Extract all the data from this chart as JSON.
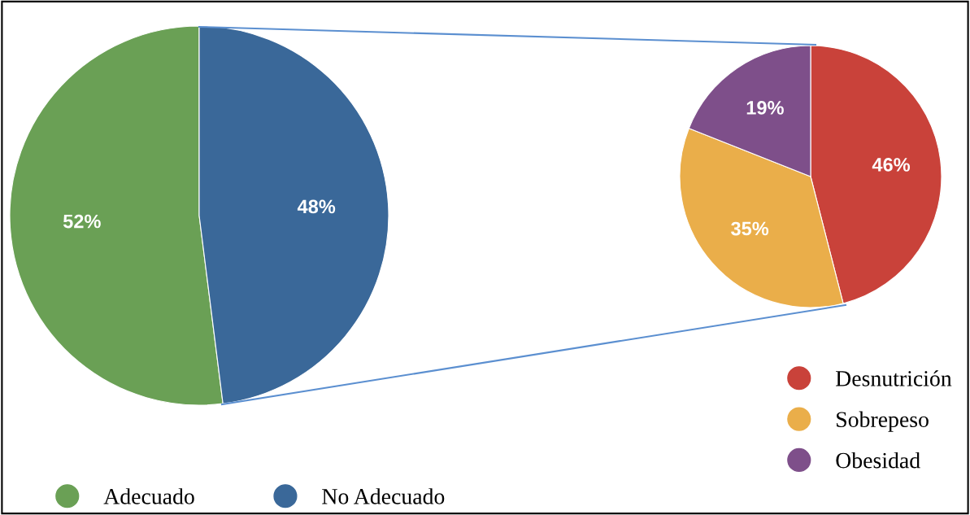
{
  "chart_data": [
    {
      "type": "pie",
      "categories": [
        "Adecuado",
        "No Adecuado"
      ],
      "values": [
        52,
        48
      ],
      "colors": [
        "#6aa055",
        "#3a6899"
      ],
      "value_labels": [
        "52%",
        "48%"
      ],
      "legend": "bottom"
    },
    {
      "type": "pie",
      "categories": [
        "Desnutrición",
        "Sobrepeso",
        "Obesidad"
      ],
      "values": [
        46,
        35,
        19
      ],
      "colors": [
        "#c9423a",
        "#eaae4a",
        "#7e4f8a"
      ],
      "value_labels": [
        "46%",
        "35%",
        "19%"
      ],
      "legend": "bottom right"
    }
  ]
}
